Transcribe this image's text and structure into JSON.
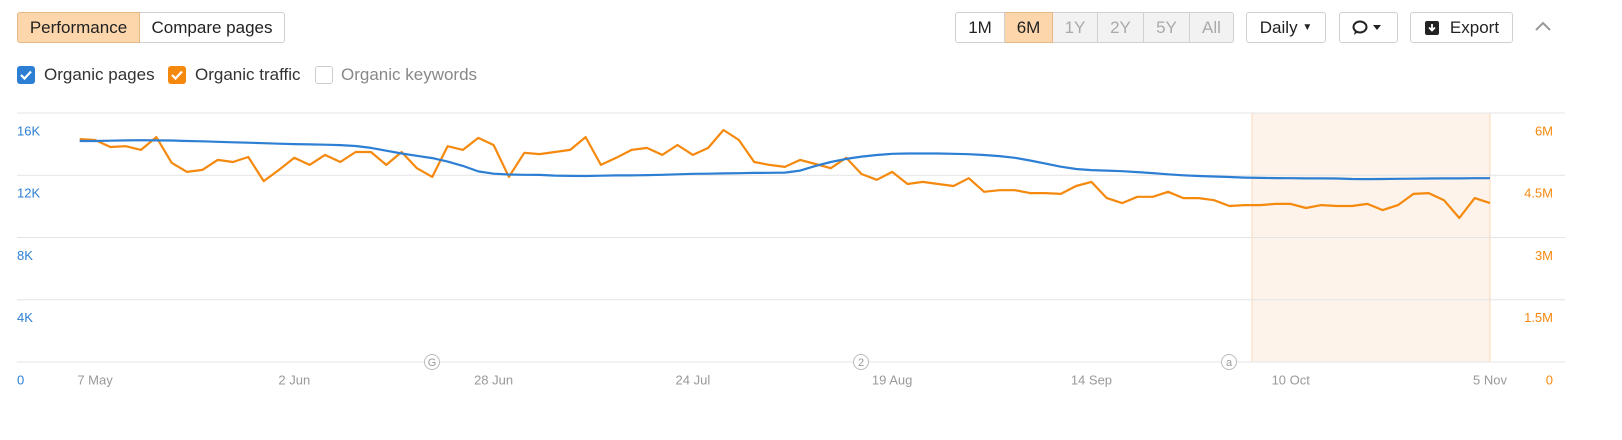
{
  "toolbar": {
    "tabs": [
      {
        "label": "Performance",
        "active": true
      },
      {
        "label": "Compare pages",
        "active": false
      }
    ],
    "ranges": [
      {
        "label": "1M",
        "state": "normal"
      },
      {
        "label": "6M",
        "state": "active"
      },
      {
        "label": "1Y",
        "state": "disabled"
      },
      {
        "label": "2Y",
        "state": "disabled"
      },
      {
        "label": "5Y",
        "state": "disabled"
      },
      {
        "label": "All",
        "state": "disabled"
      }
    ],
    "interval": "Daily",
    "export": "Export"
  },
  "inactive_series": [
    "Organic keywords"
  ],
  "chart_data": {
    "type": "line",
    "categories": [
      null,
      "7 May",
      null,
      null,
      null,
      null,
      null,
      null,
      null,
      null,
      null,
      null,
      null,
      null,
      "2 Jun",
      null,
      null,
      null,
      null,
      null,
      null,
      null,
      null,
      null,
      null,
      null,
      null,
      "28 Jun",
      null,
      null,
      null,
      null,
      null,
      null,
      null,
      null,
      null,
      null,
      null,
      null,
      "24 Jul",
      null,
      null,
      null,
      null,
      null,
      null,
      null,
      null,
      null,
      null,
      null,
      null,
      "19 Aug",
      null,
      null,
      null,
      null,
      null,
      null,
      null,
      null,
      null,
      null,
      null,
      null,
      "14 Sep",
      null,
      null,
      null,
      null,
      null,
      null,
      null,
      null,
      null,
      null,
      null,
      null,
      "10 Oct",
      null,
      null,
      null,
      null,
      null,
      null,
      null,
      null,
      null,
      null,
      null,
      null,
      "5 Nov"
    ],
    "series": [
      {
        "name": "Organic pages",
        "color": "#2d7fd3",
        "values": [
          14200,
          14200,
          14220,
          14240,
          14250,
          14240,
          14230,
          14200,
          14180,
          14150,
          14120,
          14090,
          14060,
          14030,
          14000,
          13980,
          13960,
          13940,
          13880,
          13760,
          13580,
          13400,
          13250,
          13100,
          12880,
          12600,
          12250,
          12100,
          12050,
          12030,
          12020,
          11980,
          11960,
          11950,
          11970,
          11990,
          11990,
          12010,
          12030,
          12060,
          12090,
          12100,
          12120,
          12130,
          12150,
          12160,
          12170,
          12300,
          12600,
          12850,
          13050,
          13200,
          13300,
          13380,
          13400,
          13400,
          13400,
          13380,
          13350,
          13300,
          13230,
          13120,
          12950,
          12750,
          12550,
          12400,
          12330,
          12300,
          12260,
          12200,
          12140,
          12060,
          12000,
          11950,
          11920,
          11890,
          11850,
          11830,
          11820,
          11810,
          11800,
          11800,
          11790,
          11760,
          11750,
          11760,
          11770,
          11780,
          11790,
          11800,
          11800,
          11810,
          11810
        ]
      },
      {
        "name": "Organic traffic",
        "color": "#f5890e",
        "axis": "y2",
        "values": [
          5370000,
          5350000,
          5180000,
          5200000,
          5110000,
          5420000,
          4800000,
          4580000,
          4630000,
          4870000,
          4820000,
          4940000,
          4360000,
          4630000,
          4920000,
          4750000,
          4990000,
          4820000,
          5060000,
          5060000,
          4750000,
          5060000,
          4670000,
          4460000,
          5200000,
          5110000,
          5400000,
          5230000,
          4460000,
          5040000,
          5010000,
          5060000,
          5110000,
          5420000,
          4750000,
          4920000,
          5110000,
          5160000,
          4990000,
          5230000,
          4990000,
          5160000,
          5590000,
          5350000,
          4820000,
          4750000,
          4700000,
          4870000,
          4770000,
          4670000,
          4920000,
          4530000,
          4390000,
          4580000,
          4290000,
          4340000,
          4290000,
          4240000,
          4430000,
          4100000,
          4140000,
          4140000,
          4070000,
          4070000,
          4050000,
          4240000,
          4340000,
          3950000,
          3830000,
          3980000,
          3980000,
          4100000,
          3950000,
          3950000,
          3900000,
          3760000,
          3780000,
          3780000,
          3810000,
          3810000,
          3710000,
          3780000,
          3760000,
          3760000,
          3810000,
          3660000,
          3780000,
          4050000,
          4070000,
          3900000,
          3470000,
          3950000,
          3830000
        ]
      }
    ],
    "ylim": [
      0,
      16000
    ],
    "yticks": [
      0,
      {
        "value": 4000,
        "label": "4K"
      },
      {
        "value": 8000,
        "label": "8K"
      },
      {
        "value": 12000,
        "label": "12K"
      },
      {
        "value": 16000,
        "label": "16K"
      }
    ],
    "y2lim": [
      0,
      6000000
    ],
    "y2ticks": [
      0,
      {
        "value": 1500000,
        "label": "1.5M"
      },
      {
        "value": 3000000,
        "label": "3M"
      },
      {
        "value": 4500000,
        "label": "4.5M"
      },
      {
        "value": 6000000,
        "label": "6M"
      }
    ],
    "grid": true,
    "annotations": [
      "G",
      "2",
      "a"
    ]
  }
}
